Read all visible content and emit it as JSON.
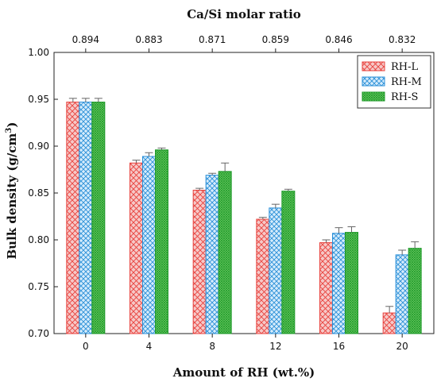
{
  "chart_data": {
    "type": "bar",
    "title": "",
    "xlabel": "Amount of RH (wt.%)",
    "ylabel": "Bulk density (g/cm",
    "ylabel_sup": "3",
    "ylabel_close": ")",
    "x2label": "Ca/Si molar ratio",
    "categories": [
      "0",
      "4",
      "8",
      "12",
      "16",
      "20"
    ],
    "top_categories": [
      "0.894",
      "0.883",
      "0.871",
      "0.859",
      "0.846",
      "0.832"
    ],
    "ylim": [
      0.7,
      1.0
    ],
    "yticks": [
      "0.70",
      "0.75",
      "0.80",
      "0.85",
      "0.90",
      "0.95",
      "1.00"
    ],
    "yticks_values": [
      0.7,
      0.75,
      0.8,
      0.85,
      0.9,
      0.95,
      1.0
    ],
    "legend_position": "top-right",
    "grid": false,
    "series": [
      {
        "name": "RH-L",
        "color": "#e8413c",
        "fill": "#f6c9c8",
        "pattern": "crosshatch",
        "values": [
          0.947,
          0.882,
          0.853,
          0.822,
          0.797,
          0.722
        ],
        "errors": [
          0.004,
          0.003,
          0.002,
          0.002,
          0.003,
          0.007
        ]
      },
      {
        "name": "RH-M",
        "color": "#2a8fd8",
        "fill": "#d6ecfb",
        "pattern": "crosshatch",
        "values": [
          0.947,
          0.889,
          0.869,
          0.834,
          0.807,
          0.784
        ],
        "errors": [
          0.004,
          0.004,
          0.002,
          0.004,
          0.006,
          0.005
        ]
      },
      {
        "name": "RH-S",
        "color": "#1f9a2a",
        "fill": "#7ad36e",
        "pattern": "dense-crosshatch",
        "values": [
          0.947,
          0.896,
          0.873,
          0.852,
          0.808,
          0.791
        ],
        "errors": [
          0.004,
          0.002,
          0.009,
          0.002,
          0.006,
          0.007
        ]
      }
    ]
  }
}
